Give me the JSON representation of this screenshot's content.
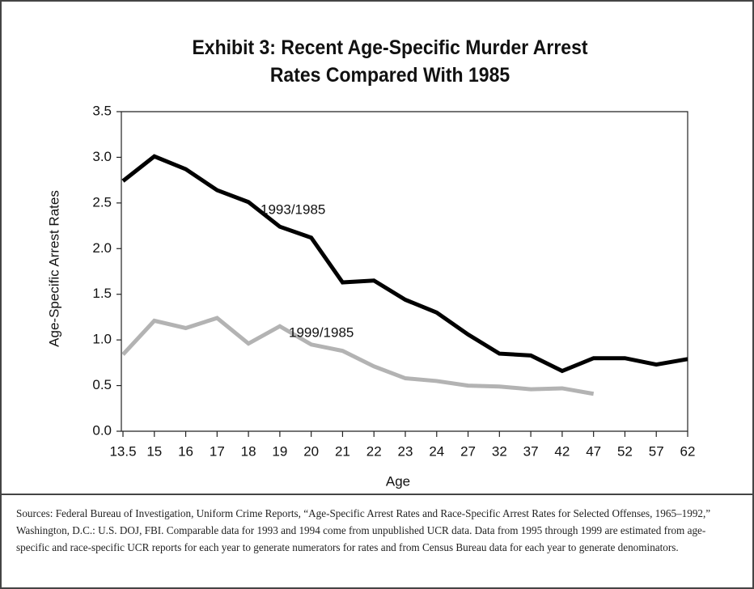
{
  "chart_data": {
    "type": "line",
    "title": "Exhibit 3: Recent Age-Specific Murder Arrest Rates Compared With 1985",
    "x_label": "Age",
    "y_label": "Age-Specific Arrest Rates",
    "categories": [
      "13.5",
      "15",
      "16",
      "17",
      "18",
      "19",
      "20",
      "21",
      "22",
      "23",
      "24",
      "27",
      "32",
      "37",
      "42",
      "47",
      "52",
      "57",
      "62"
    ],
    "series": [
      {
        "name": "1993/1985",
        "color": "#000000",
        "values": [
          2.74,
          3.01,
          2.87,
          2.64,
          2.51,
          2.24,
          2.12,
          1.63,
          1.65,
          1.44,
          1.3,
          1.06,
          0.85,
          0.83,
          0.66,
          0.8,
          0.8,
          0.73,
          0.79
        ]
      },
      {
        "name": "1999/1985",
        "color": "#b3b3b3",
        "values": [
          0.84,
          1.21,
          1.13,
          1.24,
          0.96,
          1.15,
          0.95,
          0.88,
          0.71,
          0.58,
          0.55,
          0.5,
          0.49,
          0.46,
          0.47,
          0.41,
          null,
          null,
          null
        ]
      }
    ],
    "ylim": [
      0,
      3.5
    ],
    "yticks": [
      {
        "value": 0,
        "label": "0.0"
      },
      0.5,
      {
        "value": 1,
        "label": "1.0"
      },
      1.5,
      {
        "value": 2,
        "label": "2.0"
      },
      2.5,
      {
        "value": 3,
        "label": "3.0"
      },
      3.5
    ],
    "source": "Sources: Federal Bureau of Investigation, Uniform Crime Reports, “Age-Specific Arrest Rates and Race-Specific Arrest Rates for Selected Offenses, 1965–1992,” Washington, D.C.: U.S. DOJ, FBI. Comparable data for 1993 and 1994 come from unpublished UCR data. Data from 1995 through 1999 are estimated from age-specific and race-specific UCR reports for each year to generate numerators for rates and from Census Bureau data for each year to generate denominators."
  }
}
